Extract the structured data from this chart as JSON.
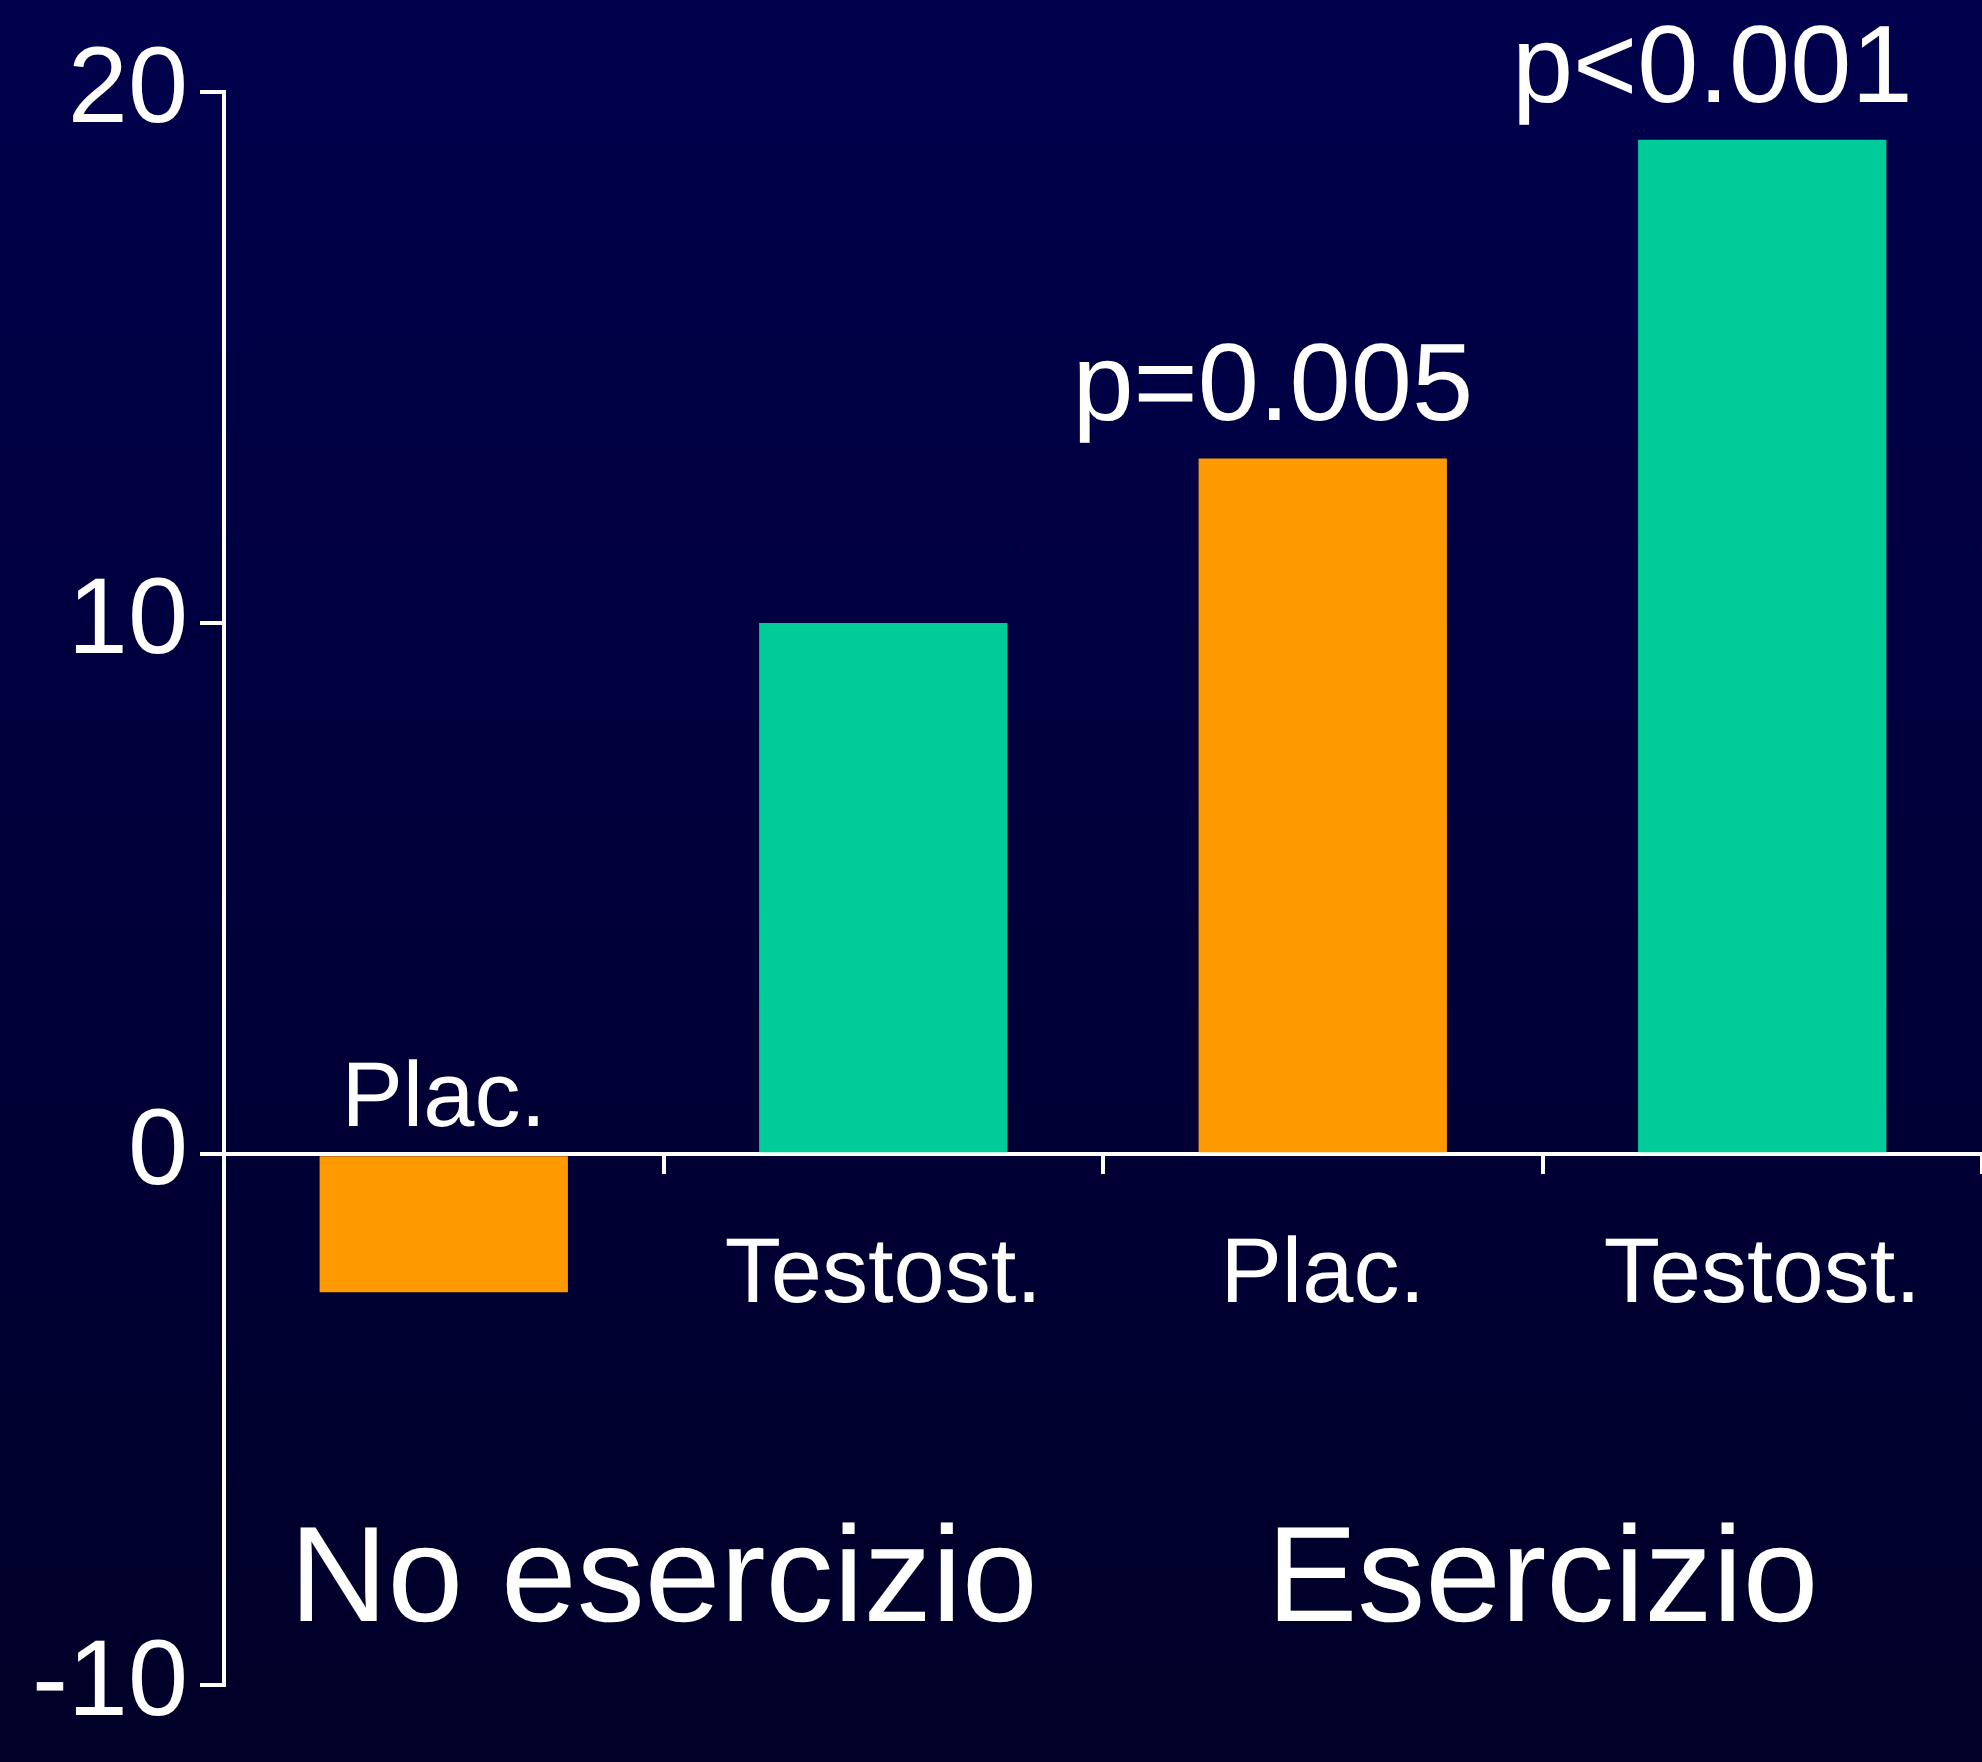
{
  "chart_data": {
    "type": "bar",
    "categories": [
      "Plac.",
      "Testost.",
      "Plac.",
      "Testost."
    ],
    "values": [
      -2.6,
      10,
      13.1,
      19.1
    ],
    "colors": [
      "#ff9900",
      "#00cc99",
      "#ff9900",
      "#00cc99"
    ],
    "ylim": [
      -10,
      20
    ],
    "yticks": [
      -10,
      0,
      10,
      20
    ],
    "annotations": [
      "p=0.005",
      "p<0.001",
      "No esercizio",
      "Esercizio"
    ]
  }
}
